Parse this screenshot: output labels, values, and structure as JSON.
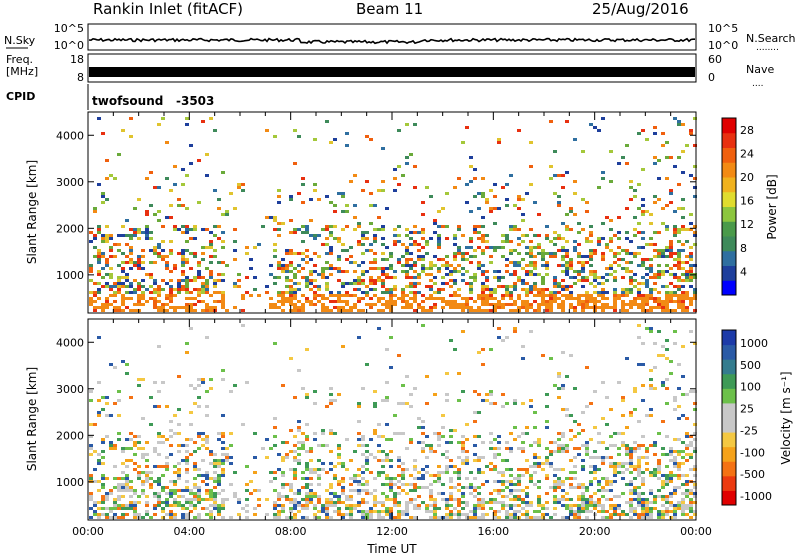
{
  "header": {
    "title": "Rankin Inlet (fitACF)",
    "beam": "Beam 11",
    "date": "25/Aug/2016"
  },
  "strips": {
    "nsky": {
      "label": "N.Sky",
      "ticks": [
        "10^5",
        "10^0"
      ]
    },
    "nsearch": {
      "label": "N.Search",
      "dots": "........",
      "ticks": [
        "10^5",
        "10^0"
      ]
    },
    "freq": {
      "label_1": "Freq.",
      "label_2": "[MHz]",
      "ticks": [
        "18",
        "8"
      ]
    },
    "nave": {
      "label": "Nave",
      "dots": "....",
      "ticks": [
        "60",
        "0"
      ]
    },
    "cpid": {
      "label": "CPID",
      "mode": "twofsound",
      "value": "-3503"
    }
  },
  "colors": {
    "power_scale": [
      "#0000ff",
      "#1e3f9c",
      "#2f6fa0",
      "#3e8a5a",
      "#4a9a4a",
      "#8cc63e",
      "#e0dc2e",
      "#f0b21e",
      "#f28a14",
      "#f0600e",
      "#e83010",
      "#e00000"
    ],
    "velocity_scale": [
      "#e00000",
      "#ec3a10",
      "#f47214",
      "#f5a21a",
      "#f4c842",
      "#c8c8c8",
      "#c8c8c8",
      "#6cc04a",
      "#3e9a56",
      "#347c8e",
      "#2a5aa6",
      "#1c3aa8"
    ],
    "scatter_power": [
      "#1e3f9c",
      "#2f6fa0",
      "#3e8a5a",
      "#6aaa3a",
      "#a4c83a",
      "#e0c42e",
      "#f28a14",
      "#f0600e",
      "#e83010"
    ],
    "scatter_velocity": [
      "#c8c8c8",
      "#c8c8c8",
      "#c8c8c8",
      "#f5a21a",
      "#f47214",
      "#f4c842",
      "#6cc04a",
      "#3e9a56",
      "#2a5aa6"
    ]
  },
  "chart_data": [
    {
      "type": "heatmap",
      "quantity": "Power",
      "title": "",
      "xlabel": "",
      "ylabel": "Slant Range [km]",
      "ylim": [
        180,
        4500
      ],
      "yticks": [
        1000,
        2000,
        3000,
        4000
      ],
      "colorbar_label": "Power [dB]",
      "colorbar_ticks": [
        "4",
        "8",
        "12",
        "16",
        "20",
        "24",
        "28"
      ],
      "colorbar_range": [
        0,
        30
      ]
    },
    {
      "type": "heatmap",
      "quantity": "Velocity",
      "title": "",
      "xlabel": "Time UT",
      "ylabel": "Slant Range [km]",
      "ylim": [
        180,
        4500
      ],
      "yticks": [
        1000,
        2000,
        3000,
        4000
      ],
      "xlim": [
        "00:00",
        "24:00"
      ],
      "xtick_labels": [
        "00:00",
        "04:00",
        "08:00",
        "12:00",
        "16:00",
        "20:00",
        "00:00"
      ],
      "colorbar_label": "Velocity [m s⁻¹]",
      "colorbar_ticks": [
        "1000",
        "500",
        "100",
        "25",
        "-25",
        "-100",
        "-500",
        "-1000"
      ]
    }
  ]
}
